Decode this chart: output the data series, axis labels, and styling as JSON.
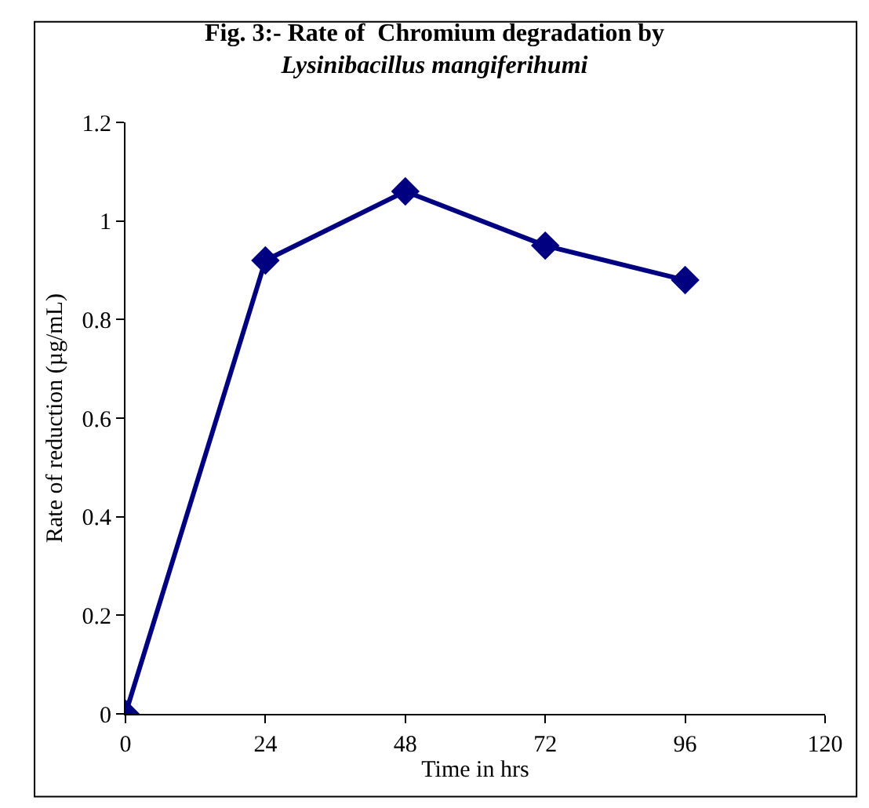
{
  "chart_data": {
    "type": "line",
    "title": "Fig. 3:- Rate of  Chromium degradation by\nLysinibacillus mangiferihumi",
    "xlabel": "Time in hrs",
    "ylabel": "Rate of reduction (µg/mL)",
    "x": [
      0,
      24,
      48,
      72,
      96
    ],
    "series": [
      {
        "color": "#000080",
        "values": [
          0,
          0.92,
          1.06,
          0.95,
          0.88
        ]
      }
    ],
    "xlim": [
      0,
      120
    ],
    "xticks": [
      0,
      24,
      48,
      72,
      96,
      120
    ],
    "ylim": [
      0,
      1.2
    ],
    "yticks": [
      0,
      0.2,
      0.4,
      0.6,
      0.8,
      1,
      1.2
    ],
    "marker": "diamond",
    "line_style": "solid"
  }
}
